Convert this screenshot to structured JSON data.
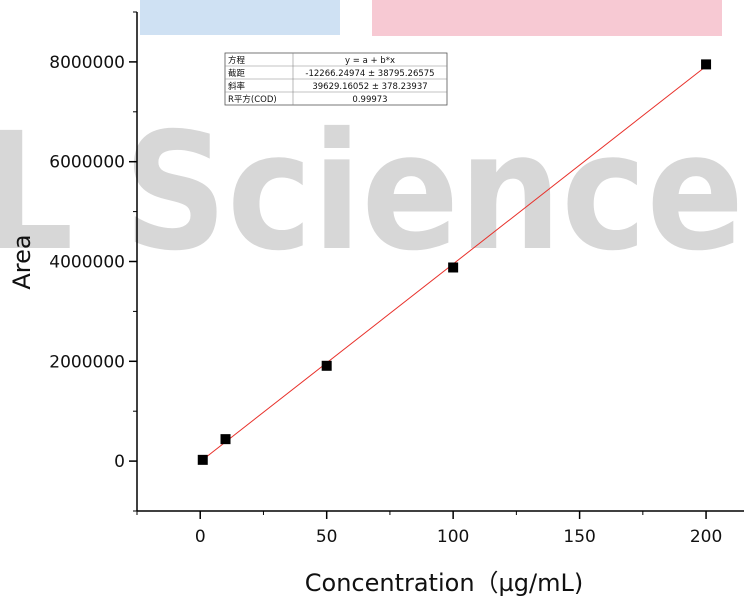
{
  "chart_data": {
    "type": "scatter",
    "title": "",
    "xlabel": "Concentration（µg/mL)",
    "ylabel": "Area",
    "xlim": [
      -25,
      215
    ],
    "ylim": [
      -1000000,
      9000000
    ],
    "x_ticks": [
      0,
      50,
      100,
      150,
      200
    ],
    "x_tick_labels": [
      "0",
      "50",
      "100",
      "150",
      "200"
    ],
    "y_ticks": [
      0,
      2000000,
      4000000,
      6000000,
      8000000
    ],
    "y_tick_labels": [
      "0",
      "2000000",
      "4000000",
      "6000000",
      "8000000"
    ],
    "grid": false,
    "series": [
      {
        "x": [
          1,
          10,
          50,
          100,
          200
        ],
        "y": [
          25000,
          440000,
          1910000,
          3880000,
          7950000
        ],
        "marker": "square",
        "color": "#000000"
      }
    ],
    "fit_line": {
      "intercept": -12266.24974,
      "slope": 39629.16052,
      "x_range": [
        1,
        200
      ],
      "color": "#e8302a"
    },
    "stats_table": [
      {
        "label": "方程",
        "value": "y = a + b*x"
      },
      {
        "label": "截距",
        "value": "-12266.24974 ± 38795.26575"
      },
      {
        "label": "斜率",
        "value": "39629.16052 ± 378.23937"
      },
      {
        "label": "R平方(COD)",
        "value": "0.99973"
      }
    ]
  },
  "watermark": {
    "text": "L Science",
    "text_color": "#d7d7d7",
    "banner_blue": "#cfe1f3",
    "banner_pink": "#f7c9d3"
  }
}
